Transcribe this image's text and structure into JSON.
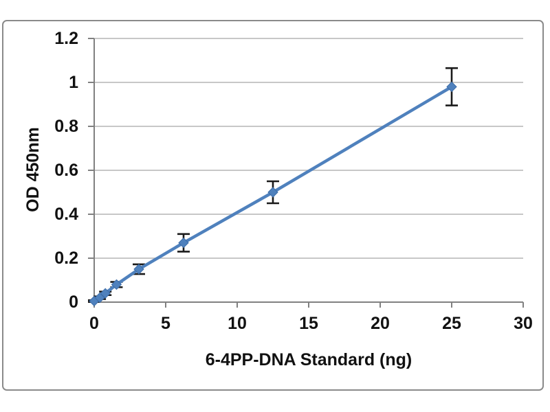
{
  "chart_data": {
    "type": "line",
    "title": "",
    "xlabel": "6-4PP-DNA Standard (ng)",
    "ylabel": "OD 450nm",
    "x": [
      0,
      0.39,
      0.78,
      1.56,
      3.125,
      6.25,
      12.5,
      25
    ],
    "y": [
      0.005,
      0.02,
      0.04,
      0.08,
      0.15,
      0.27,
      0.5,
      0.98
    ],
    "y_err": [
      0.004,
      0.006,
      0.008,
      0.012,
      0.022,
      0.04,
      0.05,
      0.085
    ],
    "xlim": [
      0,
      30
    ],
    "ylim": [
      0,
      1.2
    ],
    "x_ticks": [
      0,
      5,
      10,
      15,
      20,
      25,
      30
    ],
    "x_tick_labels": [
      "0",
      "5",
      "10",
      "15",
      "20",
      "25",
      "30"
    ],
    "y_ticks": [
      0,
      0.2,
      0.4,
      0.6,
      0.8,
      1,
      1.2
    ],
    "y_tick_labels": [
      "0",
      "0.2",
      "0.4",
      "0.6",
      "0.8",
      "1",
      "1.2"
    ],
    "grid": "horizontal",
    "legend": "none",
    "marker": "diamond",
    "series_color": "#4F81BD",
    "marker_edge_color": "#3D6DA8",
    "error_bar_color": "#1a1a1a",
    "gridline_color": "#bfbfbf",
    "axis_color": "#808080",
    "text_color": "#111111",
    "frame_border_color": "#8a8a8a"
  }
}
